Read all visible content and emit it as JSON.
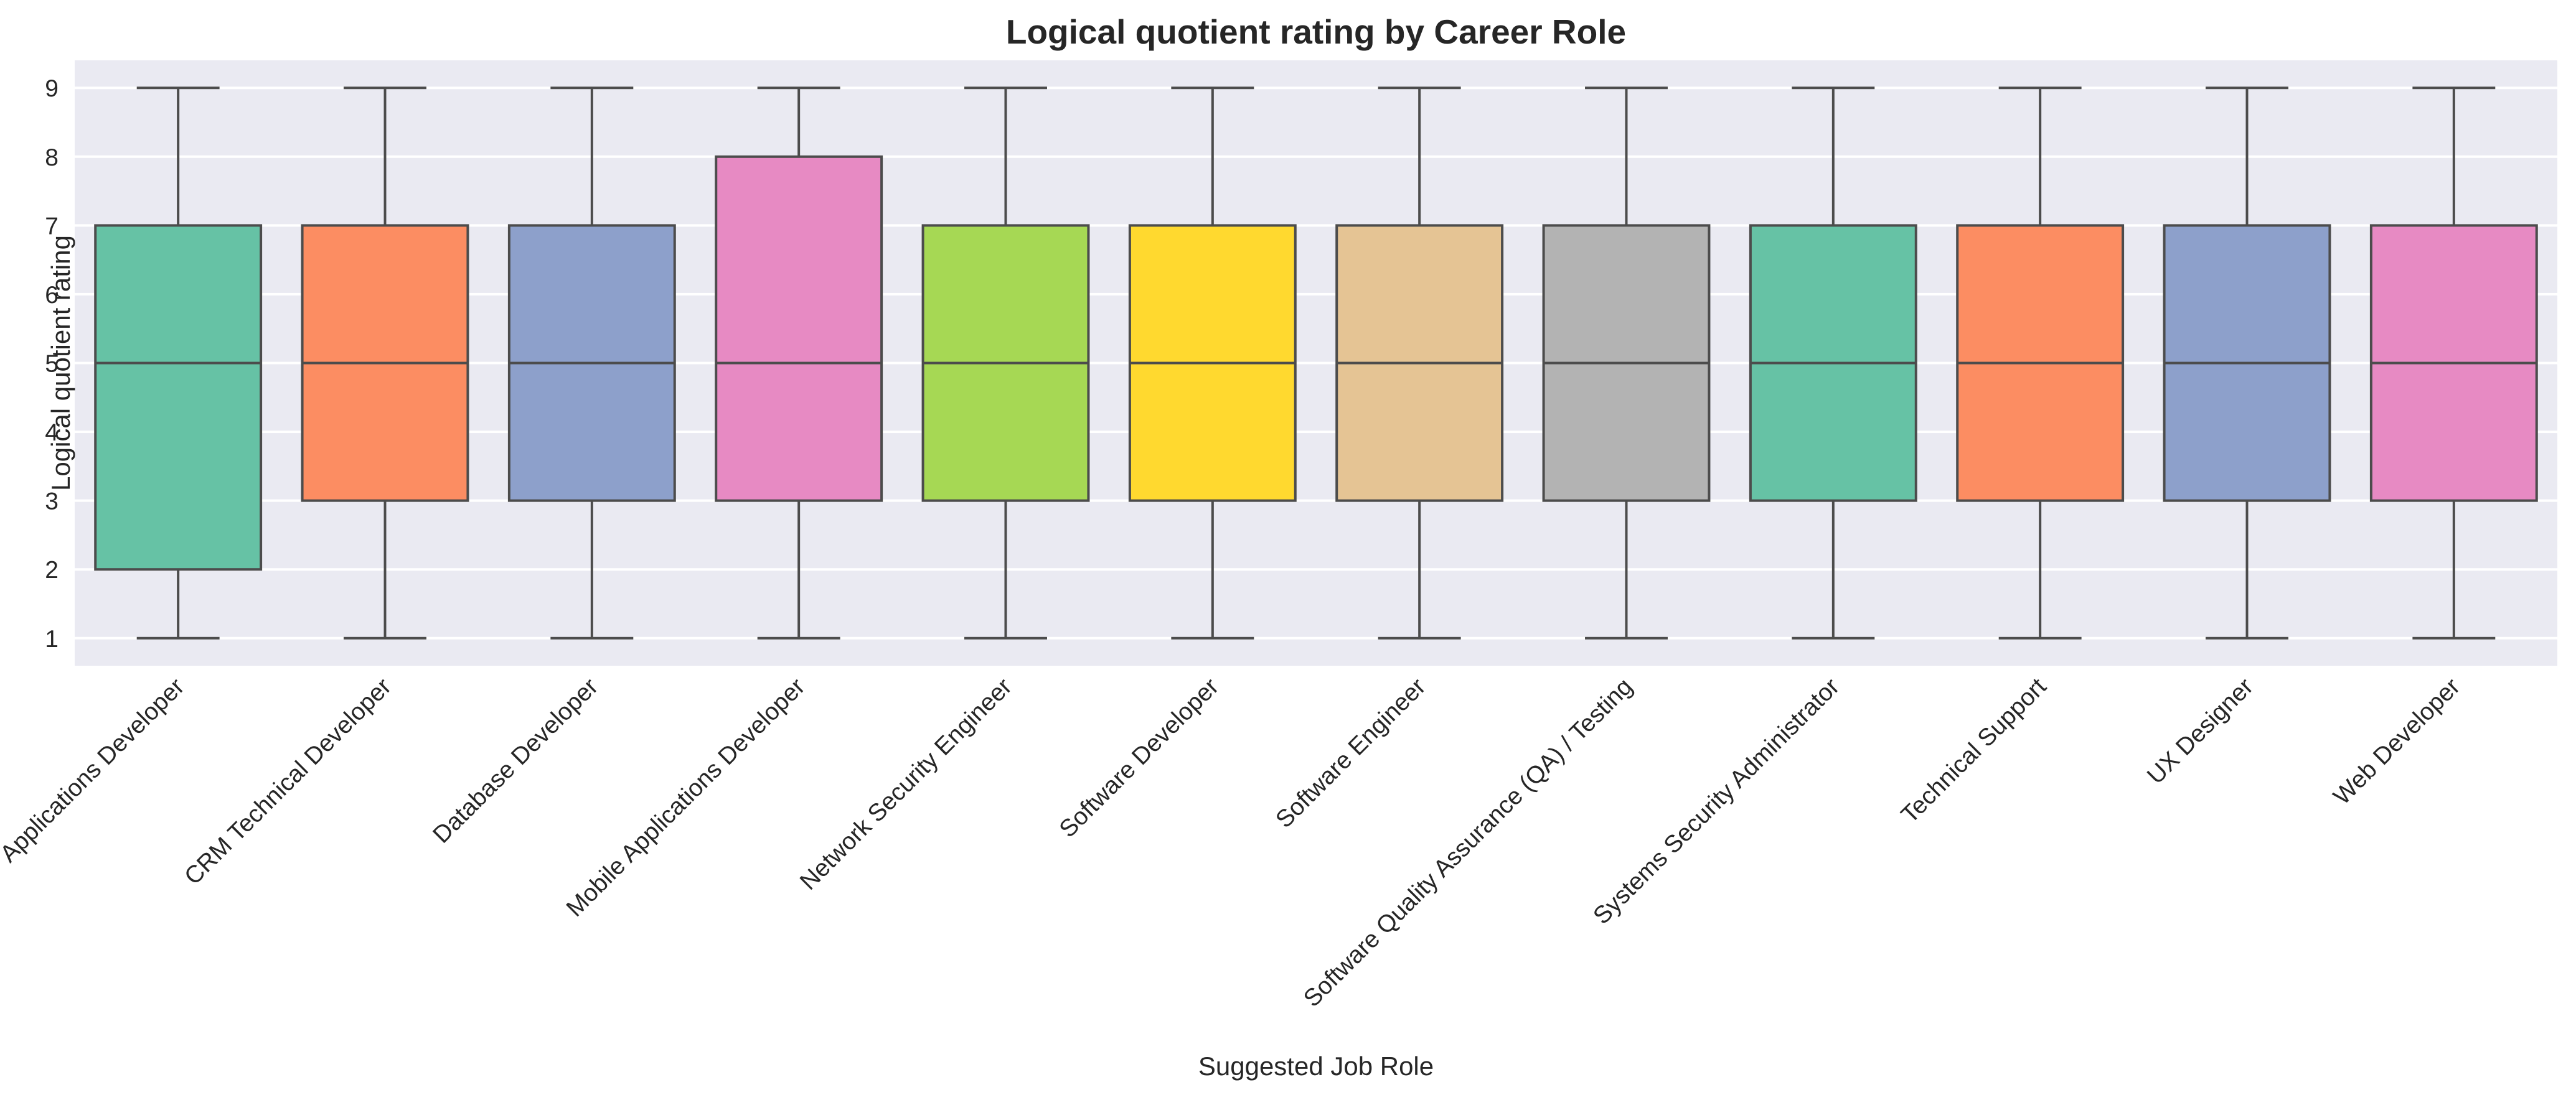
{
  "chart_data": {
    "type": "box",
    "title": "Logical quotient rating by Career Role",
    "xlabel": "Suggested Job Role",
    "ylabel": "Logical quotient rating",
    "ylim": [
      0.6,
      9.4
    ],
    "yticks": [
      1,
      2,
      3,
      4,
      5,
      6,
      7,
      8,
      9
    ],
    "grid": true,
    "categories": [
      "Applications Developer",
      "CRM Technical Developer",
      "Database Developer",
      "Mobile Applications Developer",
      "Network Security Engineer",
      "Software Developer",
      "Software Engineer",
      "Software Quality Assurance (QA) / Testing",
      "Systems Security Administrator",
      "Technical Support",
      "UX Designer",
      "Web Developer"
    ],
    "boxes": [
      {
        "min": 1,
        "q1": 2,
        "median": 5,
        "q3": 7,
        "max": 9
      },
      {
        "min": 1,
        "q1": 3,
        "median": 5,
        "q3": 7,
        "max": 9
      },
      {
        "min": 1,
        "q1": 3,
        "median": 5,
        "q3": 7,
        "max": 9
      },
      {
        "min": 1,
        "q1": 3,
        "median": 5,
        "q3": 8,
        "max": 9
      },
      {
        "min": 1,
        "q1": 3,
        "median": 5,
        "q3": 7,
        "max": 9
      },
      {
        "min": 1,
        "q1": 3,
        "median": 5,
        "q3": 7,
        "max": 9
      },
      {
        "min": 1,
        "q1": 3,
        "median": 5,
        "q3": 7,
        "max": 9
      },
      {
        "min": 1,
        "q1": 3,
        "median": 5,
        "q3": 7,
        "max": 9
      },
      {
        "min": 1,
        "q1": 3,
        "median": 5,
        "q3": 7,
        "max": 9
      },
      {
        "min": 1,
        "q1": 3,
        "median": 5,
        "q3": 7,
        "max": 9
      },
      {
        "min": 1,
        "q1": 3,
        "median": 5,
        "q3": 7,
        "max": 9
      },
      {
        "min": 1,
        "q1": 3,
        "median": 5,
        "q3": 7,
        "max": 9
      }
    ],
    "colors": [
      "#66c2a5",
      "#fc8d62",
      "#8da0cb",
      "#e78ac3",
      "#a6d854",
      "#ffd92f",
      "#e5c494",
      "#b3b3b3",
      "#66c2a5",
      "#fc8d62",
      "#8da0cb",
      "#e78ac3"
    ],
    "background_color": "#eaeaf2"
  }
}
